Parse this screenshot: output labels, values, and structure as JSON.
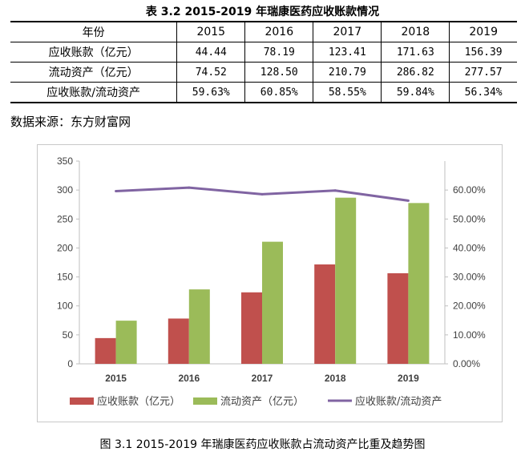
{
  "table_title": "表 3.2 2015-2019 年瑞康医药应收账款情况",
  "table": {
    "header": [
      "年份",
      "2015",
      "2016",
      "2017",
      "2018",
      "2019"
    ],
    "rows": [
      [
        "应收账款（亿元）",
        "44.44",
        "78.19",
        "123.41",
        "171.63",
        "156.39"
      ],
      [
        "流动资产（亿元）",
        "74.52",
        "128.50",
        "210.79",
        "286.82",
        "277.57"
      ],
      [
        "应收账款/流动资产",
        "59.63%",
        "60.85%",
        "58.55%",
        "59.84%",
        "56.34%"
      ]
    ]
  },
  "source": "数据来源：东方财富网",
  "figure_caption": "图 3.1 2015-2019 年瑞康医药应收账款占流动资产比重及趋势图",
  "colors": {
    "receivables": "#c0504d",
    "current_assets": "#9bbb59",
    "ratio": "#8064a2"
  },
  "chart_data": {
    "type": "bar",
    "categories": [
      "2015",
      "2016",
      "2017",
      "2018",
      "2019"
    ],
    "series": [
      {
        "name": "应收账款（亿元）",
        "type": "bar",
        "axis": "left",
        "values": [
          44.44,
          78.19,
          123.41,
          171.63,
          156.39
        ]
      },
      {
        "name": "流动资产（亿元）",
        "type": "bar",
        "axis": "left",
        "values": [
          74.52,
          128.5,
          210.79,
          286.82,
          277.57
        ]
      },
      {
        "name": "应收账款/流动资产",
        "type": "line",
        "axis": "right",
        "values": [
          0.5963,
          0.6085,
          0.5855,
          0.5984,
          0.5634
        ]
      }
    ],
    "left_axis": {
      "ylim": [
        0,
        350
      ],
      "ticks": [
        "0",
        "50",
        "100",
        "150",
        "200",
        "250",
        "300",
        "350"
      ]
    },
    "right_axis": {
      "ylim": [
        0,
        0.7
      ],
      "ticks": [
        "0.00%",
        "10.00%",
        "20.00%",
        "30.00%",
        "40.00%",
        "50.00%",
        "60.00%"
      ]
    },
    "grid": false,
    "legend": "bottom"
  }
}
